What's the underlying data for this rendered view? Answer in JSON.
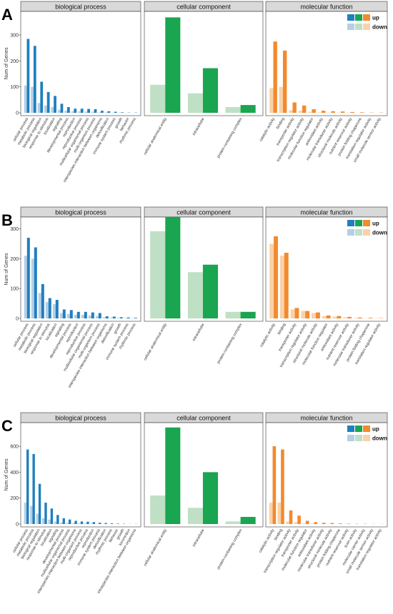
{
  "facet_titles": [
    "biological process",
    "cellular component",
    "molecular function"
  ],
  "colors": {
    "bp_up": "#1f7fbf",
    "bp_down": "#b4cfe6",
    "cc_up": "#1aa550",
    "cc_down": "#bfe0c4",
    "mf_up": "#f28a2e",
    "mf_down": "#f9d2a9",
    "strip": "#d9d9d9"
  },
  "legend": {
    "up_label": "up",
    "down_label": "down"
  },
  "chart_data": [
    {
      "type": "bar",
      "panel_label": "A",
      "ylabel": "Num of Genes",
      "ylim": [
        0,
        380
      ],
      "yticks": [
        0,
        100,
        200,
        300
      ],
      "facets": [
        {
          "title": "biological process",
          "categories": [
            "cellular process",
            "metabolic process",
            "biological regulation",
            "response to stimulus",
            "localization",
            "signaling",
            "developmental process",
            "reproduction",
            "reproductive process",
            "multicellular organismal process",
            "multi-organism process",
            "interspecies interaction between organisms",
            "detoxification",
            "immune system process",
            "growth",
            "behavior",
            "rhythmic process"
          ],
          "series": [
            {
              "name": "up",
              "values": [
                285,
                258,
                120,
                80,
                65,
                35,
                22,
                16,
                16,
                15,
                14,
                8,
                6,
                4,
                2,
                1,
                1
              ]
            },
            {
              "name": "down",
              "values": [
                105,
                100,
                38,
                28,
                22,
                12,
                8,
                6,
                6,
                5,
                4,
                2,
                2,
                1,
                1,
                0,
                0
              ]
            }
          ]
        },
        {
          "title": "cellular component",
          "categories": [
            "cellular anatomical entity",
            "intracellular",
            "protein-containing complex"
          ],
          "series": [
            {
              "name": "up",
              "values": [
                368,
                172,
                30
              ]
            },
            {
              "name": "down",
              "values": [
                108,
                75,
                22
              ]
            }
          ]
        },
        {
          "title": "molecular function",
          "categories": [
            "catalytic activity",
            "binding",
            "transporter activity",
            "transcription regulator activity",
            "molecular function regulator",
            "antioxidant activity",
            "molecular transducer activity",
            "structural molecule activity",
            "nutrient reservoir activity",
            "protein folding chaperone",
            "translation regulator activity",
            "small molecule sensor activity"
          ],
          "series": [
            {
              "name": "up",
              "values": [
                275,
                240,
                40,
                28,
                14,
                8,
                6,
                5,
                3,
                2,
                1,
                1
              ]
            },
            {
              "name": "down",
              "values": [
                95,
                100,
                10,
                8,
                4,
                2,
                1,
                1,
                1,
                0,
                0,
                0
              ]
            }
          ]
        }
      ]
    },
    {
      "type": "bar",
      "panel_label": "B",
      "ylabel": "Num of Genes",
      "ylim": [
        0,
        330
      ],
      "yticks": [
        0,
        100,
        200,
        300
      ],
      "facets": [
        {
          "title": "biological process",
          "categories": [
            "cellular process",
            "metabolic process",
            "biological regulation",
            "response to stimulus",
            "localization",
            "signaling",
            "developmental process",
            "reproduction",
            "reproductive process",
            "multicellular organismal process",
            "multi-organism process",
            "interspecies interaction between organisms",
            "detoxification",
            "growth",
            "immune system process",
            "rhythmic process"
          ],
          "series": [
            {
              "name": "up",
              "values": [
                270,
                238,
                115,
                68,
                62,
                30,
                28,
                22,
                22,
                20,
                18,
                7,
                6,
                4,
                3,
                2
              ]
            },
            {
              "name": "down",
              "values": [
                210,
                200,
                85,
                55,
                48,
                18,
                15,
                12,
                12,
                10,
                8,
                4,
                3,
                2,
                2,
                1
              ]
            }
          ]
        },
        {
          "title": "cellular component",
          "categories": [
            "cellular anatomical entity",
            "intracellular",
            "protein-containing complex"
          ],
          "series": [
            {
              "name": "up",
              "values": [
                340,
                180,
                22
              ]
            },
            {
              "name": "down",
              "values": [
                292,
                155,
                22
              ]
            }
          ]
        },
        {
          "title": "molecular function",
          "categories": [
            "catalytic activity",
            "binding",
            "transporter activity",
            "transcription regulator activity",
            "structural molecule activity",
            "molecular function regulator",
            "antioxidant activity",
            "nutrient reservoir activity",
            "molecular transducer activity",
            "protein folding chaperone",
            "translation regulator activity"
          ],
          "series": [
            {
              "name": "up",
              "values": [
                275,
                220,
                35,
                25,
                20,
                10,
                8,
                5,
                3,
                2,
                1
              ]
            },
            {
              "name": "down",
              "values": [
                250,
                210,
                30,
                25,
                18,
                8,
                6,
                4,
                2,
                1,
                1
              ]
            }
          ]
        }
      ]
    },
    {
      "type": "bar",
      "panel_label": "C",
      "ylabel": "Num of Genes",
      "ylim": [
        0,
        760
      ],
      "yticks": [
        0,
        200,
        400,
        600
      ],
      "facets": [
        {
          "title": "biological process",
          "categories": [
            "cellular process",
            "metabolic process",
            "biological regulation",
            "response to stimulus",
            "localization",
            "signaling",
            "developmental process",
            "multicellular organismal process",
            "interspecies interaction between organisms",
            "multi-organism process",
            "reproductive process",
            "reproduction",
            "immune system process",
            "detoxification",
            "rhythmic process",
            "behavior",
            "growth",
            "locomotion",
            "intraspecies interaction between organisms"
          ],
          "series": [
            {
              "name": "up",
              "values": [
                575,
                540,
                310,
                165,
                120,
                70,
                45,
                35,
                25,
                20,
                18,
                15,
                10,
                8,
                5,
                3,
                2,
                1,
                1
              ]
            },
            {
              "name": "down",
              "values": [
                165,
                140,
                80,
                45,
                35,
                20,
                12,
                10,
                8,
                6,
                5,
                4,
                3,
                2,
                1,
                1,
                0,
                0,
                0
              ]
            }
          ]
        },
        {
          "title": "cellular component",
          "categories": [
            "cellular anatomical entity",
            "intracellular",
            "protein-containing complex"
          ],
          "series": [
            {
              "name": "up",
              "values": [
                745,
                400,
                55
              ]
            },
            {
              "name": "down",
              "values": [
                220,
                125,
                20
              ]
            }
          ]
        },
        {
          "title": "molecular function",
          "categories": [
            "catalytic activity",
            "binding",
            "transcription regulator activity",
            "transporter activity",
            "molecular function regulator",
            "antioxidant activity",
            "molecular transducer activity",
            "structural molecule activity",
            "protein folding chaperone",
            "nutrient reservoir activity",
            "toxin activity",
            "molecular carrier activity",
            "small molecule sensor activity",
            "translation regulator activity"
          ],
          "series": [
            {
              "name": "up",
              "values": [
                600,
                575,
                105,
                65,
                25,
                15,
                10,
                8,
                5,
                3,
                2,
                2,
                1,
                1
              ]
            },
            {
              "name": "down",
              "values": [
                165,
                165,
                20,
                15,
                6,
                4,
                2,
                2,
                1,
                1,
                0,
                0,
                0,
                0
              ]
            }
          ]
        }
      ]
    }
  ]
}
